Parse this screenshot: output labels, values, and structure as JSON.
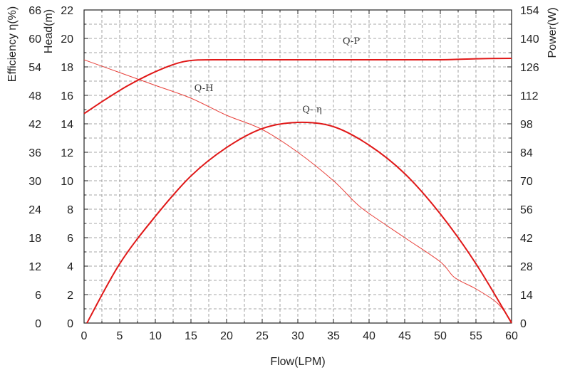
{
  "chart_data": {
    "type": "line",
    "xlabel": "Flow(LPM)",
    "x_ticks": [
      "0",
      "5",
      "10",
      "15",
      "20",
      "25",
      "30",
      "35",
      "40",
      "45",
      "50",
      "55",
      "60"
    ],
    "xlim": [
      0,
      60
    ],
    "axes": {
      "efficiency": {
        "label": "Efficiency η(%)",
        "ylim": [
          0,
          66
        ],
        "ticks": [
          "0",
          "6",
          "12",
          "18",
          "24",
          "30",
          "36",
          "42",
          "48",
          "54",
          "60",
          "66"
        ]
      },
      "head": {
        "label": "Head(m)",
        "ylim": [
          0,
          22
        ],
        "ticks": [
          "0",
          "2",
          "4",
          "6",
          "8",
          "10",
          "12",
          "14",
          "16",
          "18",
          "20",
          "22"
        ]
      },
      "power": {
        "label": "Power(W)",
        "ylim": [
          0,
          154
        ],
        "ticks": [
          "0",
          "14",
          "28",
          "42",
          "56",
          "70",
          "84",
          "98",
          "112",
          "126",
          "140",
          "154"
        ]
      }
    },
    "grid": true,
    "series": [
      {
        "name": "Q-H",
        "axis": "head",
        "color": "#e8403a",
        "x": [
          0,
          5,
          10,
          15,
          20,
          25,
          30,
          35,
          38,
          40,
          45,
          50,
          52,
          55,
          58,
          60
        ],
        "y": [
          18.5,
          17.6,
          16.7,
          15.8,
          14.6,
          13.6,
          12.0,
          10.0,
          8.5,
          7.7,
          6.0,
          4.3,
          3.2,
          2.4,
          1.4,
          0.1
        ]
      },
      {
        "name": "Q-η",
        "axis": "efficiency",
        "color": "#e01818",
        "x": [
          0.4,
          5,
          10,
          15,
          20,
          25,
          30,
          35,
          40,
          45,
          50,
          55,
          60
        ],
        "y": [
          0,
          12.5,
          22.5,
          31,
          37,
          41,
          42.3,
          41.4,
          37.5,
          31.5,
          23,
          12.5,
          0
        ]
      },
      {
        "name": "Q-P",
        "axis": "power",
        "color": "#e01818",
        "x": [
          0,
          3,
          6,
          9,
          12,
          14,
          16,
          20,
          30,
          40,
          50,
          55,
          60
        ],
        "y": [
          103,
          110,
          116.5,
          122,
          126.5,
          128.6,
          129.4,
          129.5,
          129.5,
          129.5,
          129.5,
          130,
          130.2
        ]
      }
    ],
    "curve_labels": [
      {
        "text": "Q-P",
        "x": 37.5,
        "y": 19.6
      },
      {
        "text": "Q-H",
        "x": 16.8,
        "y": 16.3
      },
      {
        "text": "Q- η",
        "x": 32.0,
        "y": 14.8
      }
    ]
  },
  "colors": {
    "grid": "#8a8a8a",
    "axis": "#222222",
    "head_curve": "#e8403a",
    "bold_curve": "#e01818"
  }
}
